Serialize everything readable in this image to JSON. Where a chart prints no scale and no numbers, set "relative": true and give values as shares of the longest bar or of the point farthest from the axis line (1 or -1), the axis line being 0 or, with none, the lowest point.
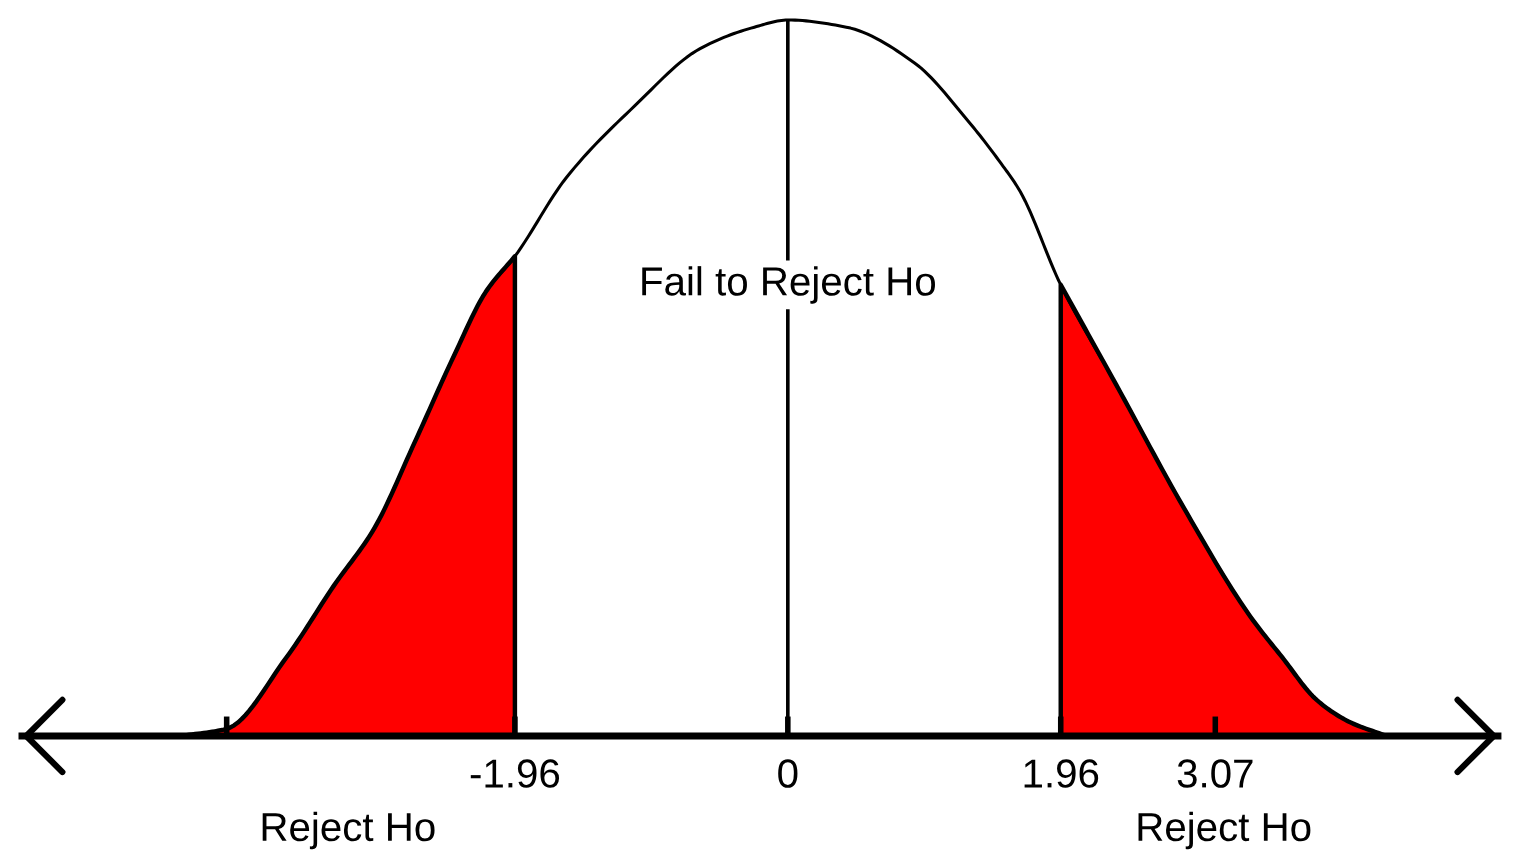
{
  "chart_data": {
    "type": "line",
    "relative": true,
    "tick_labels": "x",
    "xlim": [
      -5.5,
      5.1
    ],
    "xticks": [
      {
        "value": -4.03,
        "label": null
      },
      -1.96,
      0,
      1.96,
      3.07
    ],
    "series": [
      {
        "type": "area",
        "color": "#ff0000",
        "x": [
          -4.36,
          -4.03,
          -3.6,
          -3.26,
          -2.97,
          -2.68,
          -2.4,
          -2.17,
          -1.96
        ],
        "values": [
          0,
          0.01,
          0.11,
          0.21,
          0.29,
          0.41,
          0.53,
          0.62,
          0.67
        ]
      },
      {
        "type": "area",
        "color": "#ff0000",
        "x": [
          1.96,
          2.36,
          2.84,
          3.31,
          3.55,
          3.8,
          4.03,
          4.3
        ],
        "values": [
          0.63,
          0.49,
          0.32,
          0.17,
          0.11,
          0.05,
          0.02,
          0
        ]
      },
      {
        "color": "#000000",
        "x": [
          -4.36,
          -4.03,
          -3.6,
          -3.26,
          -2.97,
          -2.68,
          -2.4,
          -2.17,
          -1.96,
          -1.59,
          -1.1,
          -0.63,
          -0.24,
          0,
          0.42,
          0.91,
          1.29,
          1.53,
          1.67,
          1.96,
          2.36,
          2.84,
          3.31,
          3.55,
          3.8,
          4.03,
          4.3
        ],
        "values": [
          0,
          0.01,
          0.11,
          0.21,
          0.29,
          0.41,
          0.53,
          0.62,
          0.67,
          0.78,
          0.88,
          0.96,
          0.99,
          1,
          0.99,
          0.94,
          0.86,
          0.8,
          0.76,
          0.63,
          0.49,
          0.32,
          0.17,
          0.11,
          0.05,
          0.02,
          0
        ]
      }
    ],
    "ref_lines": [
      {
        "axis": "x",
        "value": 0
      }
    ],
    "annotations": [
      {
        "text": "Fail to Reject Ho",
        "x": 0,
        "y": 0.63
      },
      "Reject Ho",
      "Reject Ho"
    ]
  }
}
